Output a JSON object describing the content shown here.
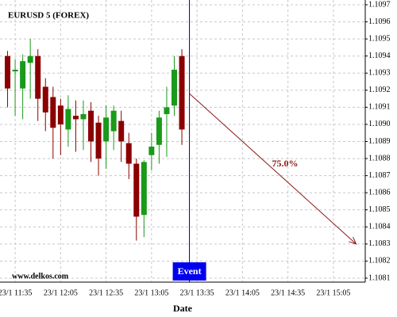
{
  "chart_data": {
    "type": "candlestick",
    "title": "EURUSD 5 (FOREX)",
    "x_label": "Date",
    "watermark": "www.delkos.com",
    "x": [
      "23/1 11:30",
      "23/1 11:35",
      "23/1 11:40",
      "23/1 11:45",
      "23/1 11:50",
      "23/1 11:55",
      "23/1 12:00",
      "23/1 12:05",
      "23/1 12:10",
      "23/1 12:15",
      "23/1 12:20",
      "23/1 12:25",
      "23/1 12:30",
      "23/1 12:35",
      "23/1 12:40",
      "23/1 12:45",
      "23/1 12:50",
      "23/1 12:55",
      "23/1 13:00",
      "23/1 13:05",
      "23/1 13:10",
      "23/1 13:15",
      "23/1 13:20",
      "23/1 13:25"
    ],
    "open": [
      1.1094,
      1.10931,
      1.10921,
      1.10936,
      1.1094,
      1.10922,
      1.10916,
      1.10911,
      1.10897,
      1.10905,
      1.10903,
      1.10908,
      1.10901,
      1.1089,
      1.10896,
      1.10902,
      1.10889,
      1.10877,
      1.10847,
      1.10882,
      1.10888,
      1.10906,
      1.10911,
      1.1094
    ],
    "high": [
      1.10943,
      1.10938,
      1.10941,
      1.1095,
      1.10944,
      1.10927,
      1.10922,
      1.10915,
      1.10917,
      1.10914,
      1.10914,
      1.10913,
      1.10905,
      1.10911,
      1.10911,
      1.10908,
      1.10895,
      1.1088,
      1.10879,
      1.10895,
      1.10908,
      1.10922,
      1.1094,
      1.10944
    ],
    "low": [
      1.1091,
      1.10905,
      1.10903,
      1.10915,
      1.10902,
      1.10896,
      1.1088,
      1.10882,
      1.10887,
      1.10884,
      1.10885,
      1.10878,
      1.1087,
      1.10874,
      1.10885,
      1.10878,
      1.10868,
      1.10832,
      1.10834,
      1.10873,
      1.10877,
      1.10881,
      1.10905,
      1.10888
    ],
    "close": [
      1.10921,
      1.10932,
      1.10937,
      1.1094,
      1.10915,
      1.10907,
      1.10898,
      1.109,
      1.10909,
      1.10903,
      1.10906,
      1.1089,
      1.1088,
      1.10904,
      1.10908,
      1.1089,
      1.10877,
      1.10846,
      1.10878,
      1.10887,
      1.10904,
      1.1091,
      1.10932,
      1.10897
    ],
    "up_color": "#1a9a1a",
    "down_color": "#8b0000",
    "xlim": [
      "23/1 11:25",
      "23/1 15:26"
    ],
    "xticks": [
      "23/1 11:35",
      "23/1 12:05",
      "23/1 12:35",
      "23/1 13:05",
      "23/1 13:35",
      "23/1 14:05",
      "23/1 14:35",
      "23/1 15:05"
    ],
    "ylim": [
      1.1081,
      1.1097
    ],
    "yticks": [
      1.1081,
      1.1082,
      1.1083,
      1.1084,
      1.1085,
      1.1086,
      1.1087,
      1.1088,
      1.1089,
      {
        "value": 1.109,
        "label": "1.1090"
      },
      1.1091,
      1.1092,
      1.1093,
      1.1094,
      1.1095,
      1.1096,
      1.1097
    ],
    "grid": true,
    "event": {
      "x": "23/1 13:30",
      "label": "Event",
      "color": "#0000ee"
    },
    "forecast": {
      "x": [
        "23/1 13:30",
        "23/1 15:20"
      ],
      "y": [
        1.10918,
        1.1083
      ],
      "label": "75.0%",
      "color": "#8b1a1a"
    }
  }
}
